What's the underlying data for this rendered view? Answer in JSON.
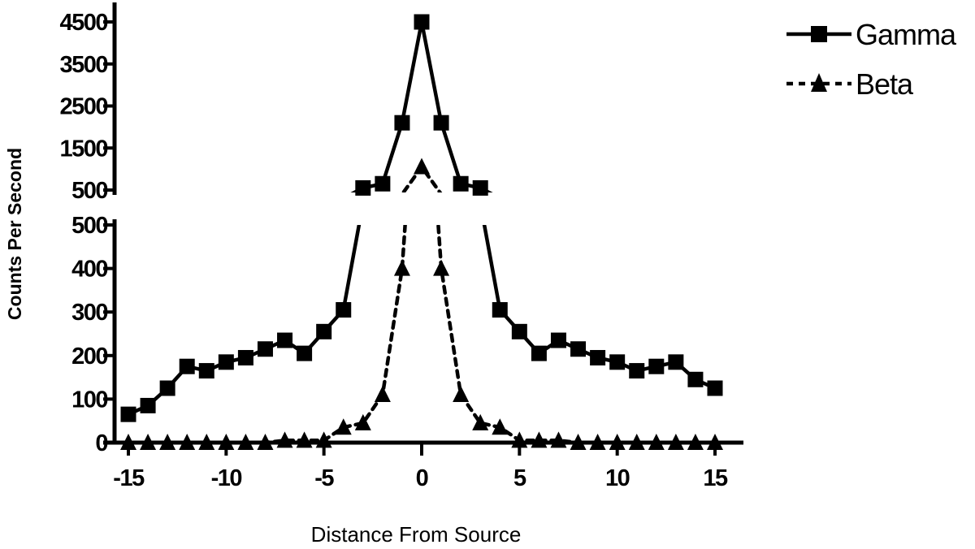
{
  "chart_data": {
    "type": "line",
    "xlabel": "Distance From Source",
    "ylabel": "Counts Per Second",
    "xlim": [
      -15,
      15
    ],
    "x_ticks": [
      -15,
      -10,
      -5,
      0,
      5,
      10,
      15
    ],
    "x_tick_labels": [
      "-15",
      "-10",
      "-5",
      "0",
      "5",
      "10",
      "15"
    ],
    "y_axis_break": true,
    "y_lower_range": [
      0,
      500
    ],
    "y_lower_ticks": [
      0,
      100,
      200,
      300,
      400,
      500
    ],
    "y_lower_tick_labels": [
      "0",
      "100",
      "200",
      "300",
      "400",
      "500"
    ],
    "y_upper_range": [
      500,
      4500
    ],
    "y_upper_ticks": [
      500,
      1500,
      2500,
      3500,
      4500
    ],
    "y_upper_tick_labels": [
      "500",
      "1500",
      "2500",
      "3500",
      "4500"
    ],
    "legend_position": "top-right",
    "x": [
      -15,
      -14,
      -13,
      -12,
      -11,
      -10,
      -9,
      -8,
      -7,
      -6,
      -5,
      -4,
      -3,
      -2,
      -1,
      0,
      1,
      2,
      3,
      4,
      5,
      6,
      7,
      8,
      9,
      10,
      11,
      12,
      13,
      14,
      15
    ],
    "series": [
      {
        "name": "Gamma",
        "line_style": "solid",
        "marker": "square",
        "values": [
          65,
          85,
          125,
          175,
          165,
          185,
          195,
          215,
          235,
          205,
          255,
          305,
          550,
          650,
          2100,
          4500,
          2100,
          650,
          550,
          305,
          255,
          205,
          235,
          215,
          195,
          185,
          165,
          175,
          185,
          145,
          125
        ]
      },
      {
        "name": "Beta",
        "line_style": "dashed",
        "marker": "triangle",
        "values": [
          0,
          0,
          0,
          0,
          0,
          0,
          0,
          0,
          5,
          5,
          5,
          35,
          45,
          110,
          400,
          1050,
          400,
          110,
          45,
          35,
          5,
          5,
          5,
          0,
          0,
          0,
          0,
          0,
          0,
          0,
          0
        ]
      }
    ]
  }
}
